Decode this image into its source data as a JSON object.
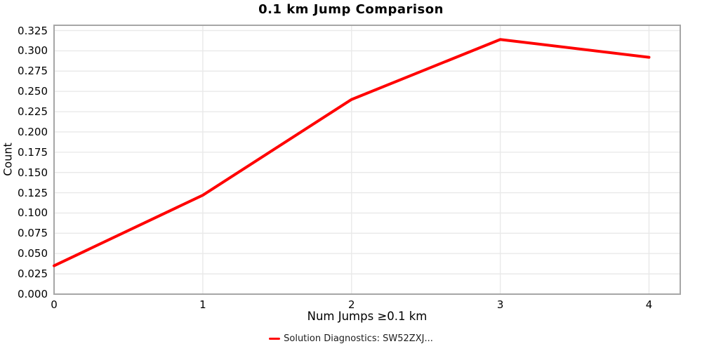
{
  "chart_data": {
    "type": "line",
    "title": "0.1 km Jump Comparison",
    "xlabel": "Num Jumps ≥0.1 km",
    "ylabel": "Count",
    "x": [
      0,
      1,
      2,
      3,
      4
    ],
    "series": [
      {
        "name": "Solution Diagnostics: SW52ZXJ...",
        "color": "#ff0000",
        "values": [
          0.035,
          0.122,
          0.24,
          0.314,
          0.292
        ]
      }
    ],
    "x_ticks": [
      0,
      1,
      2,
      3,
      4
    ],
    "y_ticks": [
      0,
      0.025,
      0.05,
      0.075,
      0.1,
      0.125,
      0.15,
      0.175,
      0.2,
      0.225,
      0.25,
      0.275,
      0.3,
      0.325
    ],
    "y_tick_decimals": 3,
    "xlim": [
      0,
      4.21
    ],
    "ylim": [
      0,
      0.3315
    ],
    "grid": true,
    "legend_position": "bottom",
    "colors": {
      "line": "#ff0000",
      "grid": "#e9e9e9",
      "border": "#a6a6a6",
      "text": "#000000"
    }
  }
}
